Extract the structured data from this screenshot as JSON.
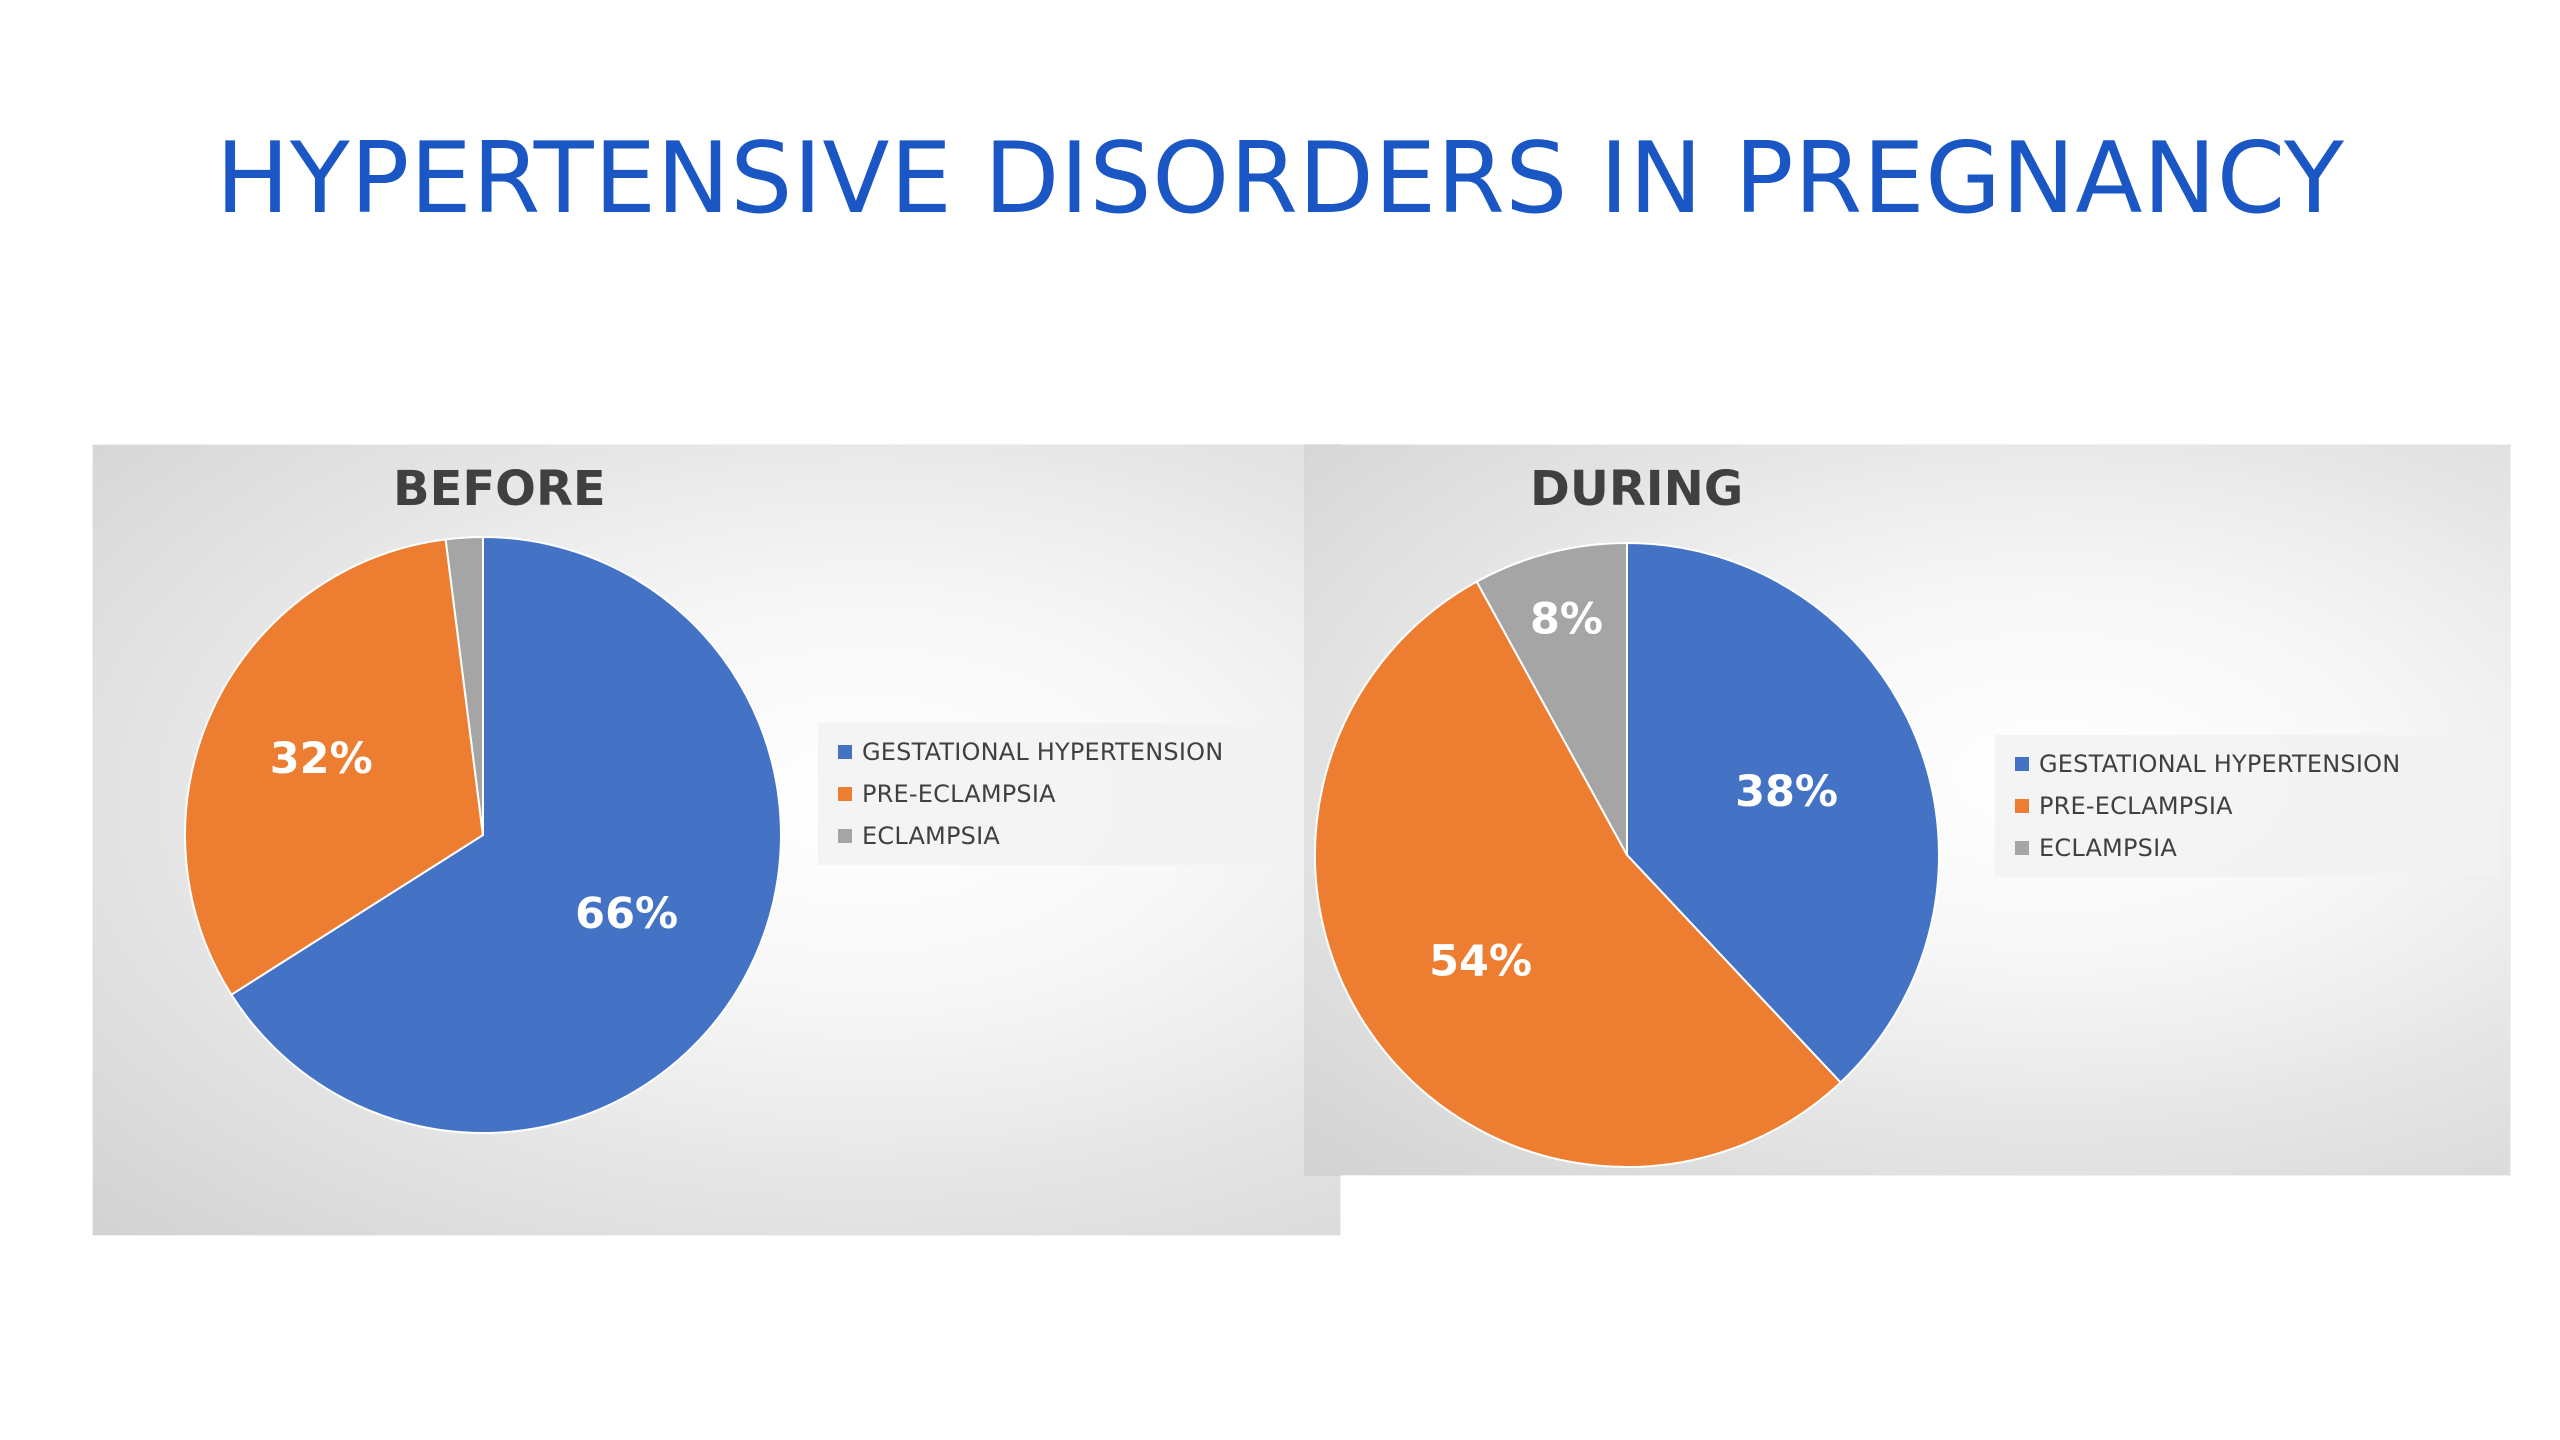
{
  "title": "HYPERTENSIVE DISORDERS IN PREGNANCY",
  "colors": {
    "title": "#1a56c4",
    "gestational_hypertension": "#4472c4",
    "pre_eclampsia": "#ed7d31",
    "eclampsia": "#a5a5a5"
  },
  "chart_data": [
    {
      "type": "pie",
      "title": "BEFORE",
      "legend_position": "right",
      "slices": [
        {
          "name": "GESTATIONAL HYPERTENSION",
          "value": 66,
          "label": "66%",
          "color": "#4472c4"
        },
        {
          "name": "PRE-ECLAMPSIA",
          "value": 32,
          "label": "32%",
          "color": "#ed7d31"
        },
        {
          "name": "ECLAMPSIA",
          "value": 2,
          "label": "",
          "color": "#a5a5a5"
        }
      ]
    },
    {
      "type": "pie",
      "title": "DURING",
      "legend_position": "right",
      "slices": [
        {
          "name": "GESTATIONAL HYPERTENSION",
          "value": 38,
          "label": "38%",
          "color": "#4472c4"
        },
        {
          "name": "PRE-ECLAMPSIA",
          "value": 54,
          "label": "54%",
          "color": "#ed7d31"
        },
        {
          "name": "ECLAMPSIA",
          "value": 8,
          "label": "8%",
          "color": "#a5a5a5"
        }
      ]
    }
  ]
}
